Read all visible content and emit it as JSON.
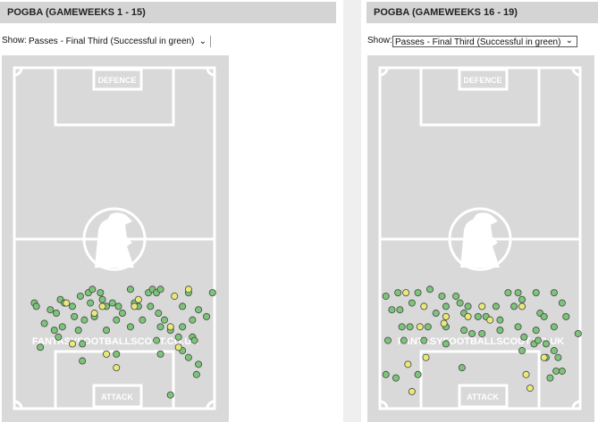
{
  "panels": [
    {
      "title": "POGBA (GAMEWEEKS 1 - 15)",
      "show_label": "Show:",
      "select": "Passes - Final Third (Successful in green)",
      "pitch": {
        "top_label": "DEFENCE",
        "bottom_label": "ATTACK",
        "watermark": "FANTASYFOOTBALLSCOUT.CO.UK"
      },
      "passes": {
        "successful": [
          [
            10,
            69
          ],
          [
            11,
            70
          ],
          [
            18,
            71
          ],
          [
            21,
            72
          ],
          [
            23,
            68
          ],
          [
            25,
            69
          ],
          [
            29,
            70
          ],
          [
            30,
            73
          ],
          [
            33,
            67
          ],
          [
            37,
            66
          ],
          [
            39,
            65
          ],
          [
            38,
            69
          ],
          [
            43,
            66
          ],
          [
            44,
            68
          ],
          [
            46,
            70
          ],
          [
            49,
            69
          ],
          [
            52,
            70
          ],
          [
            54,
            72
          ],
          [
            58,
            65
          ],
          [
            60,
            69
          ],
          [
            62,
            70
          ],
          [
            67,
            66
          ],
          [
            69,
            65
          ],
          [
            71,
            66
          ],
          [
            73,
            65
          ],
          [
            68,
            70
          ],
          [
            72,
            72
          ],
          [
            75,
            74
          ],
          [
            84,
            70
          ],
          [
            87,
            66
          ],
          [
            92,
            71
          ],
          [
            99,
            66
          ],
          [
            96,
            73
          ],
          [
            89,
            74
          ],
          [
            84,
            76
          ],
          [
            82,
            79
          ],
          [
            78,
            77
          ],
          [
            73,
            76
          ],
          [
            64,
            74
          ],
          [
            58,
            76
          ],
          [
            51,
            74
          ],
          [
            46,
            77
          ],
          [
            40,
            73
          ],
          [
            35,
            74
          ],
          [
            32,
            77
          ],
          [
            24,
            76
          ],
          [
            20,
            77
          ],
          [
            15,
            75
          ],
          [
            13,
            82
          ],
          [
            22,
            79
          ],
          [
            34,
            81
          ],
          [
            34,
            86
          ],
          [
            51,
            84
          ],
          [
            71,
            80
          ],
          [
            73,
            84
          ],
          [
            84,
            83
          ],
          [
            87,
            85
          ],
          [
            89,
            79
          ],
          [
            90,
            80
          ],
          [
            92,
            87
          ],
          [
            91,
            90
          ],
          [
            78,
            96
          ]
        ],
        "unsuccessful": [
          [
            26,
            69
          ],
          [
            44,
            70
          ],
          [
            62,
            68
          ],
          [
            80,
            67
          ],
          [
            87,
            65
          ],
          [
            29,
            81
          ],
          [
            51,
            88
          ],
          [
            82,
            82
          ],
          [
            78,
            76
          ],
          [
            60,
            70
          ],
          [
            40,
            72
          ],
          [
            46,
            84
          ]
        ]
      }
    },
    {
      "title": "POGBA (GAMEWEEKS 16 - 19)",
      "show_label": "Show:",
      "select": "Passes - Final Third (Successful in green)",
      "pitch": {
        "top_label": "DEFENCE",
        "bottom_label": "ATTACK",
        "watermark": "FANTASYFOOTBALLSCOUT.CO.UK"
      },
      "passes": {
        "successful": [
          [
            3,
            67
          ],
          [
            6,
            71
          ],
          [
            9,
            66
          ],
          [
            10,
            71
          ],
          [
            16,
            69
          ],
          [
            19,
            66
          ],
          [
            25,
            65
          ],
          [
            28,
            72
          ],
          [
            31,
            67
          ],
          [
            33,
            70
          ],
          [
            38,
            67
          ],
          [
            40,
            69
          ],
          [
            42,
            72
          ],
          [
            44,
            70
          ],
          [
            49,
            73
          ],
          [
            53,
            73
          ],
          [
            58,
            70
          ],
          [
            60,
            74
          ],
          [
            64,
            66
          ],
          [
            67,
            70
          ],
          [
            69,
            66
          ],
          [
            71,
            68
          ],
          [
            78,
            66
          ],
          [
            80,
            72
          ],
          [
            82,
            73
          ],
          [
            87,
            66
          ],
          [
            91,
            69
          ],
          [
            93,
            73
          ],
          [
            87,
            76
          ],
          [
            78,
            77
          ],
          [
            72,
            79
          ],
          [
            69,
            76
          ],
          [
            60,
            77
          ],
          [
            51,
            78
          ],
          [
            42,
            77
          ],
          [
            33,
            76
          ],
          [
            24,
            76
          ],
          [
            15,
            76
          ],
          [
            11,
            76
          ],
          [
            4,
            80
          ],
          [
            12,
            80
          ],
          [
            22,
            80
          ],
          [
            33,
            81
          ],
          [
            46,
            78
          ],
          [
            71,
            83
          ],
          [
            77,
            81
          ],
          [
            83,
            81
          ],
          [
            87,
            83
          ],
          [
            89,
            85
          ],
          [
            91,
            89
          ],
          [
            88,
            89
          ],
          [
            83,
            85
          ],
          [
            85,
            91
          ],
          [
            99,
            78
          ],
          [
            41,
            88
          ],
          [
            3,
            90
          ],
          [
            8,
            91
          ],
          [
            19,
            90
          ],
          [
            79,
            80
          ]
        ],
        "unsuccessful": [
          [
            13,
            66
          ],
          [
            22,
            70
          ],
          [
            33,
            73
          ],
          [
            44,
            73
          ],
          [
            51,
            70
          ],
          [
            55,
            74
          ],
          [
            71,
            70
          ],
          [
            32,
            75
          ],
          [
            20,
            76
          ],
          [
            14,
            87
          ],
          [
            16,
            95
          ],
          [
            23,
            85
          ],
          [
            73,
            90
          ],
          [
            75,
            94
          ],
          [
            82,
            85
          ]
        ]
      }
    }
  ]
}
